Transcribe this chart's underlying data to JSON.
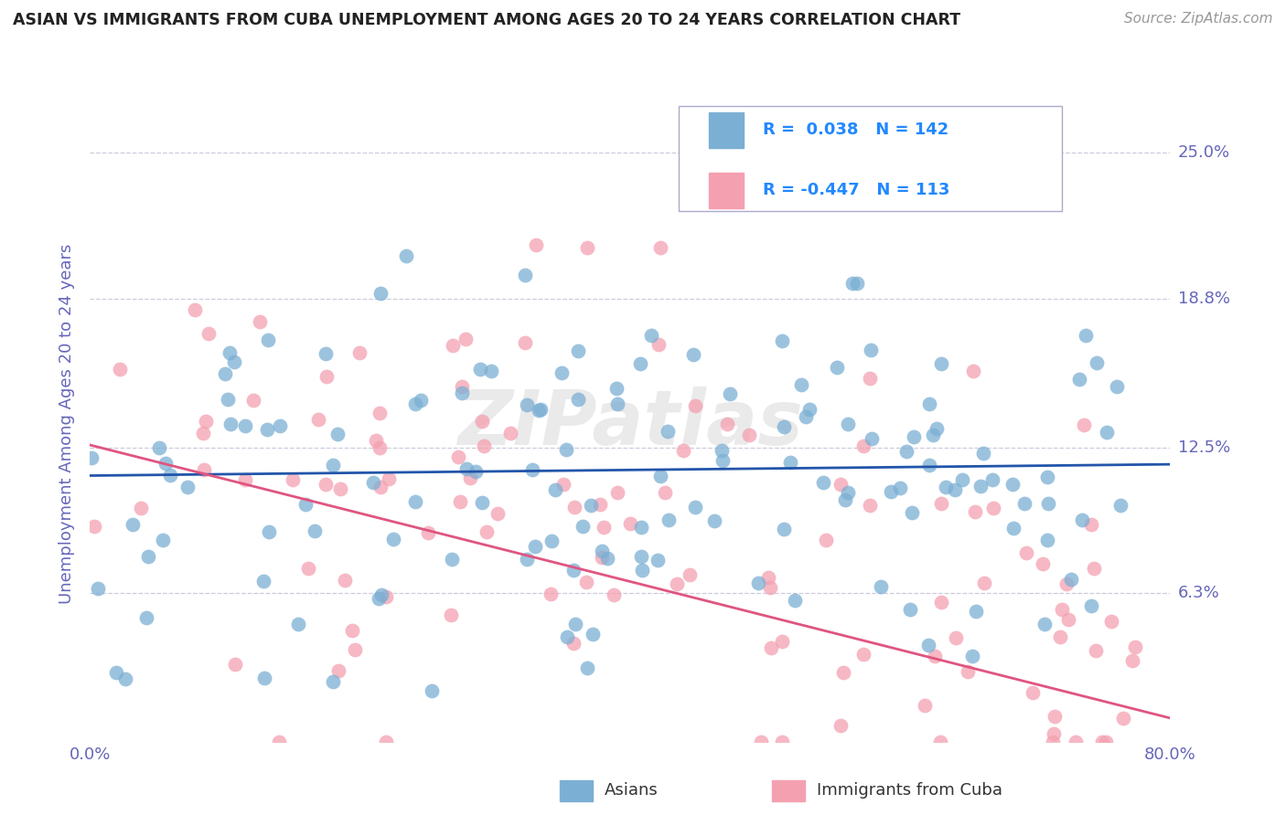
{
  "title": "ASIAN VS IMMIGRANTS FROM CUBA UNEMPLOYMENT AMONG AGES 20 TO 24 YEARS CORRELATION CHART",
  "source": "Source: ZipAtlas.com",
  "ylabel": "Unemployment Among Ages 20 to 24 years",
  "ytick_labels": [
    "6.3%",
    "12.5%",
    "18.8%",
    "25.0%"
  ],
  "ytick_values": [
    0.063,
    0.125,
    0.188,
    0.25
  ],
  "xmin": 0.0,
  "xmax": 0.8,
  "ymin": 0.0,
  "ymax": 0.27,
  "asian_R": 0.038,
  "asian_N": 142,
  "cuba_R": -0.447,
  "cuba_N": 113,
  "asian_color": "#7BAFD4",
  "cuba_color": "#F4A0B0",
  "asian_line_color": "#2255AA",
  "cuba_line_color": "#E05580",
  "watermark": "ZIPatlas",
  "background_color": "#FFFFFF",
  "grid_color": "#CCCCDD",
  "title_color": "#222222",
  "axis_label_color": "#6666BB",
  "legend_R_color": "#2288FF",
  "source_color": "#999999"
}
